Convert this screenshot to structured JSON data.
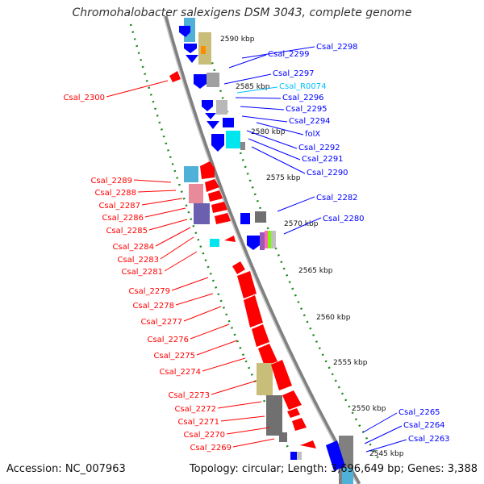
{
  "title": "Chromohalobacter salexigens DSM 3043, complete genome",
  "accession_text": "Accession: NC_007963",
  "topology_text": "Topology: circular; Length: 3,696,649 bp; Genes: 3,388",
  "colors": {
    "forward_gene": "#ff0000",
    "reverse_gene": "#0000ff",
    "rna_label": "#00bfff",
    "backbone": "#808080",
    "tick": "#1a8a1a"
  },
  "kbp_ticks": [
    "2590 kbp",
    "2585 kbp",
    "2580 kbp",
    "2575 kbp",
    "2570 kbp",
    "2565 kbp",
    "2560 kbp",
    "2555 kbp",
    "2550 kbp",
    "2545 kbp"
  ],
  "right_labels": [
    "Csal_2298",
    "Csal_2299",
    "Csal_2297",
    "Csal_R0074",
    "Csal_2296",
    "Csal_2295",
    "Csal_2294",
    "folX",
    "Csal_2292",
    "Csal_2291",
    "Csal_2290",
    "Csal_2282",
    "Csal_2280",
    "Csal_2265",
    "Csal_2264",
    "Csal_2263"
  ],
  "left_labels": [
    "Csal_2300",
    "Csal_2289",
    "Csal_2288",
    "Csal_2287",
    "Csal_2286",
    "Csal_2285",
    "Csal_2284",
    "Csal_2283",
    "Csal_2281",
    "Csal_2279",
    "Csal_2278",
    "Csal_2277",
    "Csal_2276",
    "Csal_2275",
    "Csal_2274",
    "Csal_2273",
    "Csal_2272",
    "Csal_2271",
    "Csal_2270",
    "Csal_2269"
  ]
}
